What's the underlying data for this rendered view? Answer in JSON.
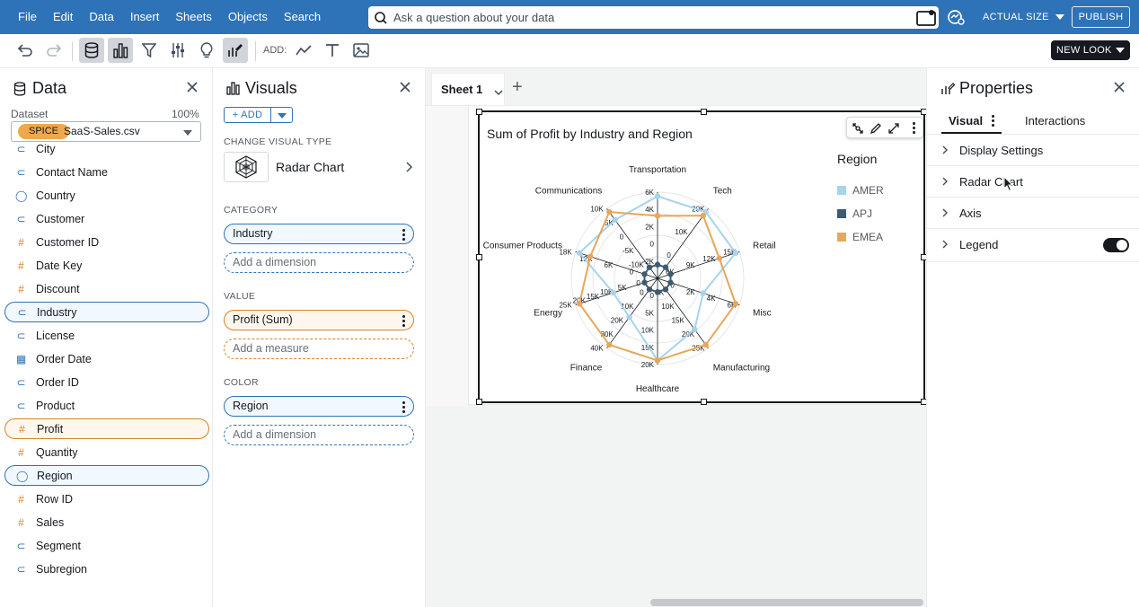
{
  "menu": [
    "File",
    "Edit",
    "Data",
    "Insert",
    "Sheets",
    "Objects",
    "Search"
  ],
  "search": {
    "placeholder": "Ask a question about your data"
  },
  "topbar": {
    "actual_size": "ACTUAL SIZE",
    "publish": "PUBLISH"
  },
  "toolbar": {
    "add_label": "ADD:",
    "new_look": "NEW LOOK"
  },
  "data_panel": {
    "title": "Data",
    "dataset_label": "Dataset",
    "dataset_pct": "100%",
    "spice": "SPICE",
    "dataset_name": "SaaS-Sales.csv",
    "fields": [
      {
        "name": "City",
        "type": "dim"
      },
      {
        "name": "Contact Name",
        "type": "dim"
      },
      {
        "name": "Country",
        "type": "geo"
      },
      {
        "name": "Customer",
        "type": "dim"
      },
      {
        "name": "Customer ID",
        "type": "measure"
      },
      {
        "name": "Date Key",
        "type": "measure"
      },
      {
        "name": "Discount",
        "type": "measure"
      },
      {
        "name": "Industry",
        "type": "dim",
        "selected": "blue"
      },
      {
        "name": "License",
        "type": "dim"
      },
      {
        "name": "Order Date",
        "type": "date"
      },
      {
        "name": "Order ID",
        "type": "dim"
      },
      {
        "name": "Product",
        "type": "dim"
      },
      {
        "name": "Profit",
        "type": "measure",
        "selected": "orange"
      },
      {
        "name": "Quantity",
        "type": "measure"
      },
      {
        "name": "Region",
        "type": "geo",
        "selected": "blue"
      },
      {
        "name": "Row ID",
        "type": "measure"
      },
      {
        "name": "Sales",
        "type": "measure"
      },
      {
        "name": "Segment",
        "type": "dim"
      },
      {
        "name": "Subregion",
        "type": "dim"
      }
    ]
  },
  "visuals_panel": {
    "title": "Visuals",
    "add": "+ ADD",
    "change_type_label": "CHANGE VISUAL TYPE",
    "visual_type": "Radar Chart",
    "category_label": "CATEGORY",
    "category_field": "Industry",
    "category_add": "Add a dimension",
    "value_label": "VALUE",
    "value_field": "Profit (Sum)",
    "value_add": "Add a measure",
    "color_label": "COLOR",
    "color_field": "Region",
    "color_add": "Add a dimension"
  },
  "sheet": {
    "tab": "Sheet 1",
    "add": "+"
  },
  "visual": {
    "title": "Sum of Profit by Industry and Region",
    "legend_title": "Region"
  },
  "properties": {
    "title": "Properties",
    "tab_visual": "Visual",
    "tab_interactions": "Interactions",
    "rows": [
      "Display Settings",
      "Radar Chart",
      "Axis",
      "Legend"
    ],
    "legend_toggle_on": true
  },
  "colors": {
    "amer": "#a7d3ec",
    "apj": "#3d5a73",
    "emea": "#e7a75a",
    "accent": "#2e73b8"
  },
  "chart_data": {
    "type": "radar",
    "title": "Sum of Profit by Industry and Region",
    "categories": [
      "Transportation",
      "Tech",
      "Retail",
      "Misc",
      "Manufacturing",
      "Healthcare",
      "Finance",
      "Energy",
      "Consumer Products",
      "Communications"
    ],
    "legend_title": "Region",
    "legend_position": "right",
    "series": [
      {
        "name": "AMER",
        "values": [
          5000,
          19000,
          13000,
          4000,
          18000,
          15000,
          20000,
          10000,
          15000,
          8000
        ]
      },
      {
        "name": "APJ",
        "values": [
          -2000,
          4000,
          1000,
          2000,
          5000,
          500,
          8000,
          -2000,
          3000,
          2000
        ]
      },
      {
        "name": "EMEA",
        "values": [
          3000,
          18000,
          10000,
          6000,
          23000,
          15000,
          32000,
          23000,
          13000,
          9000
        ]
      }
    ],
    "axis_tick_labels": [
      {
        "category": "Transportation",
        "ticks": [
          "6K",
          "4K",
          "2K",
          "0",
          "-2K"
        ]
      },
      {
        "category": "Tech",
        "ticks": [
          "20K",
          "10K",
          "0"
        ]
      },
      {
        "category": "Retail",
        "ticks": [
          "15K",
          "12K",
          "9K",
          "6K"
        ]
      },
      {
        "category": "Misc",
        "ticks": [
          "6K",
          "4K",
          "2K",
          "0"
        ]
      },
      {
        "category": "Manufacturing",
        "ticks": [
          "25K",
          "20K",
          "15K",
          "10K",
          "5K"
        ]
      },
      {
        "category": "Healthcare",
        "ticks": [
          "20K",
          "15K",
          "10K",
          "5K",
          "0"
        ]
      },
      {
        "category": "Finance",
        "ticks": [
          "40K",
          "30K",
          "20K",
          "10K",
          "0"
        ]
      },
      {
        "category": "Energy",
        "ticks": [
          "25K",
          "20K",
          "15K",
          "10K",
          "5K",
          "0"
        ]
      },
      {
        "category": "Consumer Products",
        "ticks": [
          "18K",
          "12K",
          "6K",
          "0"
        ]
      },
      {
        "category": "Communications",
        "ticks": [
          "10K",
          "5K",
          "0",
          "-5K",
          "-10K"
        ]
      }
    ],
    "grid": true
  }
}
